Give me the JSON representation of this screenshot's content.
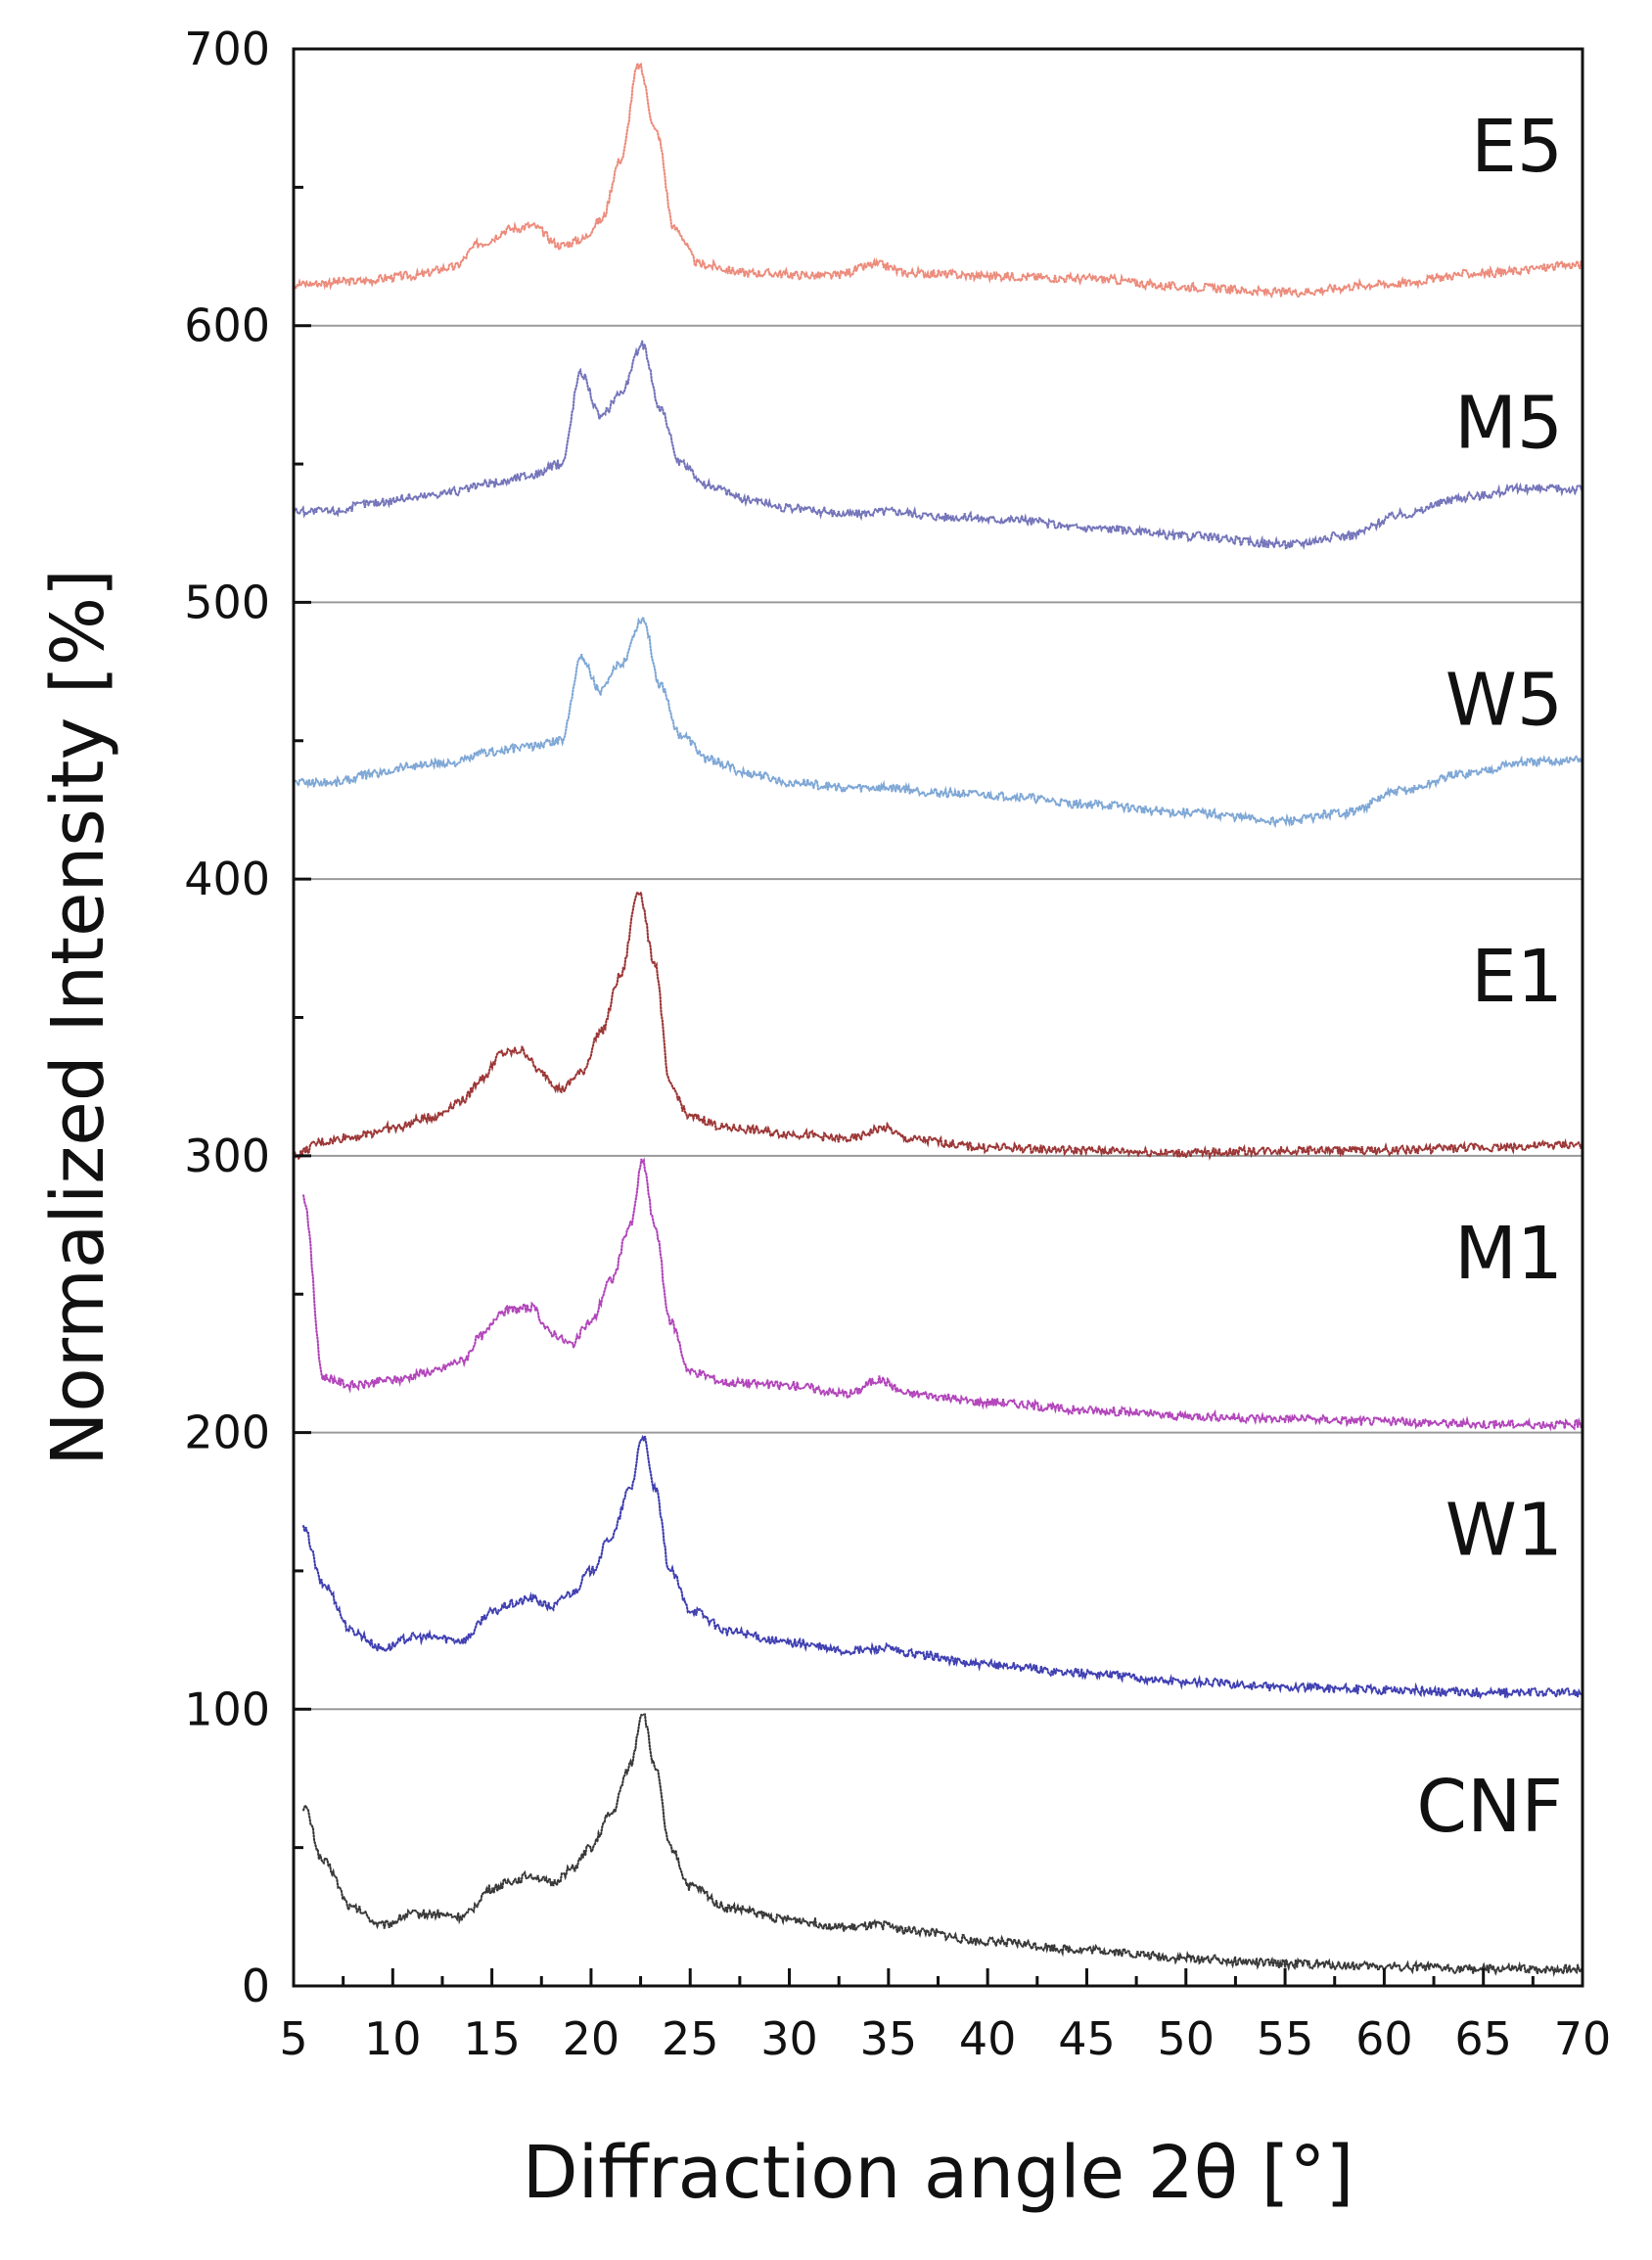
{
  "chart_data": {
    "type": "scatter",
    "title": "",
    "xlabel": "Diffraction angle 2θ [°]",
    "ylabel": "Normalized Intensity [%]",
    "xlim": [
      5,
      70
    ],
    "ylim": [
      0,
      700
    ],
    "x_ticks": [
      "5",
      "10",
      "15",
      "20",
      "25",
      "30",
      "35",
      "40",
      "45",
      "50",
      "55",
      "60",
      "65",
      "70"
    ],
    "y_ticks": [
      "0",
      "100",
      "200",
      "300",
      "400",
      "500",
      "600",
      "700"
    ],
    "separators": [
      100,
      200,
      300,
      400,
      500,
      600
    ],
    "grid": false,
    "legend": "series labels at right edge of each band",
    "series": [
      {
        "name": "CNF",
        "color": "#333333",
        "label_y": 65,
        "points": [
          [
            5.5,
            65
          ],
          [
            6.5,
            45
          ],
          [
            8,
            28
          ],
          [
            9.5,
            22
          ],
          [
            11,
            26
          ],
          [
            12,
            26
          ],
          [
            13.5,
            25
          ],
          [
            15,
            35
          ],
          [
            16,
            38
          ],
          [
            17,
            40
          ],
          [
            18,
            37
          ],
          [
            19,
            42
          ],
          [
            20,
            50
          ],
          [
            21,
            62
          ],
          [
            22,
            80
          ],
          [
            22.6,
            99
          ],
          [
            23.2,
            80
          ],
          [
            24,
            50
          ],
          [
            25,
            36
          ],
          [
            27,
            28
          ],
          [
            30,
            24
          ],
          [
            33,
            21
          ],
          [
            34.8,
            22
          ],
          [
            36,
            20
          ],
          [
            40,
            16
          ],
          [
            45,
            13
          ],
          [
            50,
            10
          ],
          [
            55,
            8
          ],
          [
            60,
            7
          ],
          [
            65,
            6
          ],
          [
            70,
            6
          ]
        ]
      },
      {
        "name": "W1",
        "color": "#3a3ab0",
        "label_y": 165,
        "points": [
          [
            5.5,
            165
          ],
          [
            6.5,
            145
          ],
          [
            8,
            128
          ],
          [
            9.5,
            122
          ],
          [
            11,
            126
          ],
          [
            12,
            126
          ],
          [
            13.5,
            125
          ],
          [
            15,
            135
          ],
          [
            16,
            138
          ],
          [
            17,
            140
          ],
          [
            18,
            137
          ],
          [
            19,
            142
          ],
          [
            20,
            150
          ],
          [
            21,
            162
          ],
          [
            22,
            180
          ],
          [
            22.6,
            199
          ],
          [
            23.2,
            180
          ],
          [
            24,
            150
          ],
          [
            25,
            136
          ],
          [
            27,
            128
          ],
          [
            30,
            124
          ],
          [
            33,
            121
          ],
          [
            34.8,
            122
          ],
          [
            36,
            120
          ],
          [
            40,
            116
          ],
          [
            45,
            113
          ],
          [
            50,
            110
          ],
          [
            55,
            108
          ],
          [
            60,
            107
          ],
          [
            65,
            106
          ],
          [
            70,
            106
          ]
        ]
      },
      {
        "name": "M1",
        "color": "#b040b8",
        "label_y": 265,
        "points": [
          [
            5.5,
            285
          ],
          [
            6.5,
            220
          ],
          [
            8,
            217
          ],
          [
            10,
            219
          ],
          [
            12,
            222
          ],
          [
            13.5,
            226
          ],
          [
            14.5,
            235
          ],
          [
            15.5,
            244
          ],
          [
            17,
            245
          ],
          [
            18,
            236
          ],
          [
            19,
            232
          ],
          [
            20,
            240
          ],
          [
            21,
            255
          ],
          [
            22,
            275
          ],
          [
            22.6,
            298
          ],
          [
            23.2,
            275
          ],
          [
            24,
            240
          ],
          [
            25,
            222
          ],
          [
            27,
            218
          ],
          [
            30,
            217
          ],
          [
            33,
            214
          ],
          [
            34.5,
            219
          ],
          [
            36,
            214
          ],
          [
            40,
            211
          ],
          [
            45,
            208
          ],
          [
            50,
            206
          ],
          [
            55,
            205
          ],
          [
            60,
            204
          ],
          [
            65,
            203
          ],
          [
            70,
            203
          ]
        ]
      },
      {
        "name": "E1",
        "color": "#9a3030",
        "label_y": 365,
        "points": [
          [
            5,
            300
          ],
          [
            6.5,
            305
          ],
          [
            8,
            307
          ],
          [
            10,
            310
          ],
          [
            12,
            314
          ],
          [
            13.5,
            320
          ],
          [
            14.5,
            328
          ],
          [
            15.5,
            337
          ],
          [
            16.5,
            338
          ],
          [
            17.5,
            330
          ],
          [
            18.5,
            324
          ],
          [
            19.5,
            330
          ],
          [
            20.5,
            345
          ],
          [
            21.5,
            365
          ],
          [
            22.4,
            396
          ],
          [
            23.2,
            370
          ],
          [
            24,
            325
          ],
          [
            25,
            314
          ],
          [
            27,
            310
          ],
          [
            30,
            308
          ],
          [
            33,
            306
          ],
          [
            34.8,
            310
          ],
          [
            36,
            306
          ],
          [
            40,
            303
          ],
          [
            45,
            302
          ],
          [
            50,
            301
          ],
          [
            55,
            302
          ],
          [
            60,
            302
          ],
          [
            65,
            303
          ],
          [
            70,
            304
          ]
        ]
      },
      {
        "name": "W5",
        "color": "#7aa4d4",
        "label_y": 465,
        "points": [
          [
            5,
            435
          ],
          [
            7,
            435
          ],
          [
            9,
            438
          ],
          [
            11,
            441
          ],
          [
            13,
            442
          ],
          [
            15,
            446
          ],
          [
            17,
            448
          ],
          [
            18.5,
            450
          ],
          [
            19.5,
            480
          ],
          [
            20.5,
            468
          ],
          [
            21.5,
            478
          ],
          [
            22.6,
            494
          ],
          [
            23.5,
            470
          ],
          [
            24.5,
            452
          ],
          [
            26,
            443
          ],
          [
            28,
            438
          ],
          [
            30,
            435
          ],
          [
            33,
            433
          ],
          [
            35,
            433
          ],
          [
            38,
            431
          ],
          [
            41,
            430
          ],
          [
            45,
            427
          ],
          [
            50,
            424
          ],
          [
            55,
            421
          ],
          [
            58,
            424
          ],
          [
            61,
            432
          ],
          [
            64,
            438
          ],
          [
            67,
            442
          ],
          [
            70,
            443
          ]
        ]
      },
      {
        "name": "M5",
        "color": "#7070b8",
        "label_y": 565,
        "points": [
          [
            5,
            533
          ],
          [
            7,
            533
          ],
          [
            9,
            536
          ],
          [
            11,
            538
          ],
          [
            13,
            540
          ],
          [
            15,
            543
          ],
          [
            17,
            546
          ],
          [
            18.5,
            550
          ],
          [
            19.5,
            583
          ],
          [
            20.5,
            567
          ],
          [
            21.5,
            576
          ],
          [
            22.6,
            593
          ],
          [
            23.5,
            570
          ],
          [
            24.5,
            550
          ],
          [
            26,
            542
          ],
          [
            28,
            537
          ],
          [
            30,
            534
          ],
          [
            33,
            532
          ],
          [
            35,
            533
          ],
          [
            38,
            531
          ],
          [
            41,
            530
          ],
          [
            45,
            527
          ],
          [
            50,
            524
          ],
          [
            55,
            521
          ],
          [
            58,
            524
          ],
          [
            61,
            532
          ],
          [
            64,
            538
          ],
          [
            67,
            541
          ],
          [
            70,
            541
          ]
        ]
      },
      {
        "name": "E5",
        "color": "#ec8878",
        "label_y": 665,
        "points": [
          [
            5,
            615
          ],
          [
            8,
            616
          ],
          [
            11,
            618
          ],
          [
            13,
            621
          ],
          [
            14.5,
            630
          ],
          [
            16,
            635
          ],
          [
            17,
            636
          ],
          [
            18.5,
            629
          ],
          [
            19.5,
            631
          ],
          [
            20.5,
            638
          ],
          [
            21.5,
            660
          ],
          [
            22.4,
            694
          ],
          [
            23.3,
            670
          ],
          [
            24.2,
            635
          ],
          [
            25.5,
            622
          ],
          [
            28,
            619
          ],
          [
            32,
            618
          ],
          [
            34.5,
            622
          ],
          [
            36,
            619
          ],
          [
            40,
            618
          ],
          [
            45,
            617
          ],
          [
            50,
            614
          ],
          [
            55,
            612
          ],
          [
            60,
            615
          ],
          [
            65,
            619
          ],
          [
            70,
            622
          ]
        ]
      }
    ]
  }
}
